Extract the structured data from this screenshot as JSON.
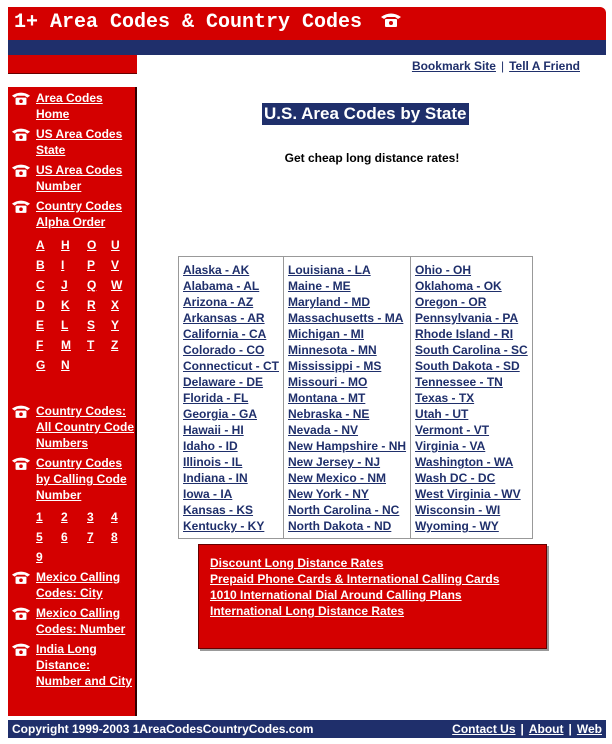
{
  "header": {
    "title": "1+ Area Codes & Country Codes"
  },
  "top_links": {
    "items": [
      "Bookmark Site",
      "Tell A Friend"
    ],
    "separator": "|"
  },
  "sidebar": {
    "nav_top": [
      "Area Codes Home",
      "US Area Codes State",
      "US Area Codes Number",
      "Country Codes Alpha Order"
    ],
    "letters": [
      [
        "A",
        "H",
        "O",
        "U"
      ],
      [
        "B",
        "I",
        "P",
        "V"
      ],
      [
        "C",
        "J",
        "Q",
        "W"
      ],
      [
        "D",
        "K",
        "R",
        "X"
      ],
      [
        "E",
        "L",
        "S",
        "Y"
      ],
      [
        "F",
        "M",
        "T",
        "Z"
      ],
      [
        "G",
        "N"
      ]
    ],
    "nav_middle": [
      "Country Codes: All Country Code Numbers",
      "Country Codes by Calling Code Number"
    ],
    "numbers": [
      [
        "1",
        "2",
        "3",
        "4"
      ],
      [
        "5",
        "6",
        "7",
        "8"
      ],
      [
        "9"
      ]
    ],
    "nav_bottom": [
      "Mexico Calling Codes: City",
      "Mexico Calling Codes: Number",
      "India Long Distance: Number and City"
    ]
  },
  "main": {
    "title": "U.S. Area Codes by State",
    "subtitle": "Get cheap long distance rates!",
    "states": [
      [
        "Alaska - AK",
        "Alabama - AL",
        "Arizona - AZ",
        "Arkansas - AR",
        "California - CA",
        "Colorado - CO",
        "Connecticut - CT",
        "Delaware - DE",
        "Florida - FL",
        "Georgia - GA",
        "Hawaii - HI",
        "Idaho - ID",
        "Illinois - IL",
        "Indiana - IN",
        "Iowa - IA",
        "Kansas - KS",
        "Kentucky - KY"
      ],
      [
        "Louisiana - LA",
        "Maine - ME",
        "Maryland - MD",
        "Massachusetts - MA",
        "Michigan - MI",
        "Minnesota - MN",
        "Mississippi - MS",
        "Missouri - MO",
        "Montana - MT",
        "Nebraska - NE",
        "Nevada - NV",
        "New Hampshire - NH",
        "New Jersey - NJ",
        "New Mexico - NM",
        "New York - NY",
        "North Carolina - NC",
        "North Dakota - ND"
      ],
      [
        "Ohio - OH",
        "Oklahoma - OK",
        "Oregon - OR",
        "Pennsylvania - PA",
        "Rhode Island - RI",
        "South Carolina - SC",
        "South Dakota - SD",
        "Tennessee - TN",
        "Texas - TX",
        "Utah - UT",
        "Vermont - VT",
        "Virginia - VA",
        "Washington - WA",
        "Wash DC - DC",
        "West Virginia - WV",
        "Wisconsin - WI",
        "Wyoming - WY"
      ]
    ],
    "promo": [
      "Discount Long Distance Rates",
      "Prepaid Phone Cards & International Calling Cards",
      "1010 International Dial Around Calling Plans",
      "International Long Distance Rates"
    ]
  },
  "footer": {
    "copyright": "Copyright 1999-2003 1AreaCodesCountryCodes.com",
    "links": [
      "Contact Us",
      "About",
      "Web"
    ],
    "separator": "|"
  }
}
